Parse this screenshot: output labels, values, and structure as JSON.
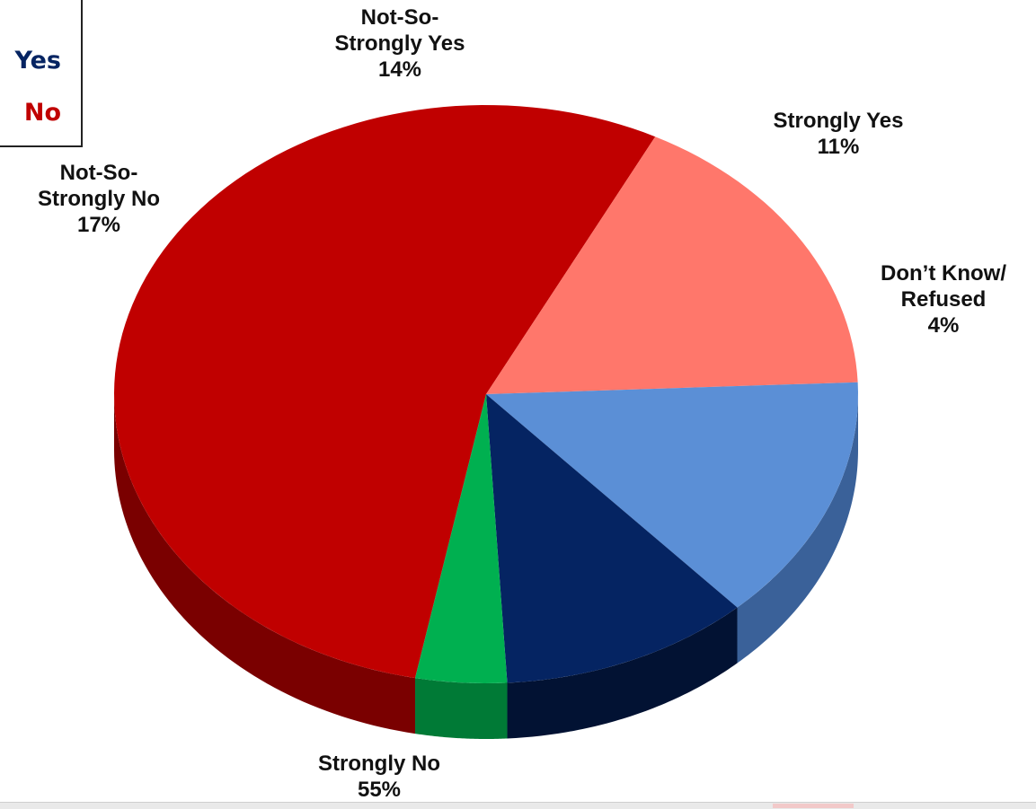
{
  "chart_data": {
    "type": "pie",
    "title": "",
    "three_d": true,
    "slices": [
      {
        "label_line1": "Strongly No",
        "label_line2": "",
        "value": 55,
        "value_text": "55%",
        "color": "#c00000",
        "side_color": "#7a0000"
      },
      {
        "label_line1": "Not-So-",
        "label_line2": "Strongly No",
        "value": 17,
        "value_text": "17%",
        "color": "#ff776b",
        "side_color": "#b44a42"
      },
      {
        "label_line1": "Not-So-",
        "label_line2": "Strongly Yes",
        "value": 14,
        "value_text": "14%",
        "color": "#5b8fd6",
        "side_color": "#3a6199"
      },
      {
        "label_line1": "Strongly Yes",
        "label_line2": "",
        "value": 11,
        "value_text": "11%",
        "color": "#052462",
        "side_color": "#021233"
      },
      {
        "label_line1": "Don’t Know/",
        "label_line2": "Refused",
        "value": 4,
        "value_text": "4%",
        "color": "#00b050",
        "side_color": "#007a36"
      }
    ],
    "legend": {
      "position": "top-left",
      "items": [
        {
          "label": "Yes",
          "color": "#052462"
        },
        {
          "label": "No",
          "color": "#c00000"
        }
      ]
    }
  }
}
